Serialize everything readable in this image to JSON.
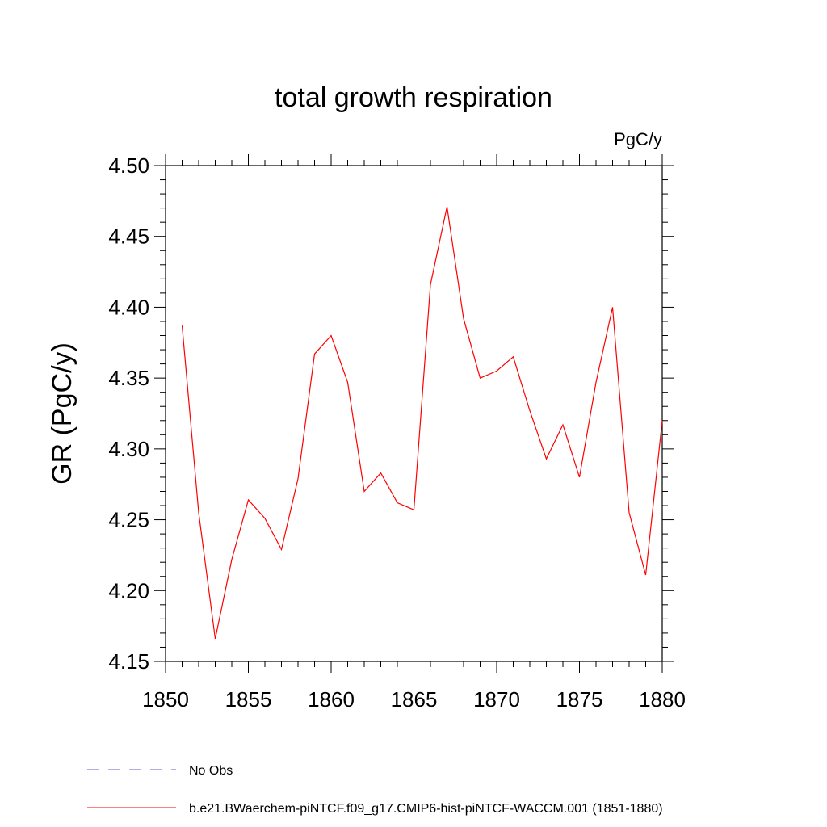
{
  "chart_data": {
    "type": "line",
    "title": "total growth respiration",
    "units_label": "PgC/y",
    "ylabel": "GR  (PgC/y)",
    "xlabel": "",
    "xlim": [
      1850,
      1880
    ],
    "ylim": [
      4.15,
      4.5
    ],
    "x_ticks": [
      1850,
      1855,
      1860,
      1865,
      1870,
      1875,
      1880
    ],
    "y_ticks": [
      "4.15",
      "4.20",
      "4.25",
      "4.30",
      "4.35",
      "4.40",
      "4.45",
      "4.50"
    ],
    "grid": false,
    "legend_position": "bottom",
    "series": [
      {
        "name": "b.e21.BWaerchem-piNTCF.f09_g17.CMIP6-hist-piNTCF-WACCM.001 (1851-1880)",
        "color": "#ff0000",
        "style": "solid",
        "x": [
          1851,
          1852,
          1853,
          1854,
          1855,
          1856,
          1857,
          1858,
          1859,
          1860,
          1861,
          1862,
          1863,
          1864,
          1865,
          1866,
          1867,
          1868,
          1869,
          1870,
          1871,
          1872,
          1873,
          1874,
          1875,
          1876,
          1877,
          1878,
          1879,
          1880
        ],
        "values": [
          4.387,
          4.255,
          4.166,
          4.222,
          4.264,
          4.251,
          4.229,
          4.279,
          4.367,
          4.38,
          4.347,
          4.27,
          4.283,
          4.262,
          4.257,
          4.416,
          4.471,
          4.392,
          4.35,
          4.355,
          4.365,
          4.327,
          4.293,
          4.317,
          4.28,
          4.347,
          4.4,
          4.255,
          4.211,
          4.32
        ]
      }
    ],
    "legend": [
      {
        "label": "No Obs",
        "color": "#6a5acd",
        "style": "dashed"
      },
      {
        "label": "b.e21.BWaerchem-piNTCF.f09_g17.CMIP6-hist-piNTCF-WACCM.001 (1851-1880)",
        "color": "#ff0000",
        "style": "solid"
      }
    ]
  }
}
